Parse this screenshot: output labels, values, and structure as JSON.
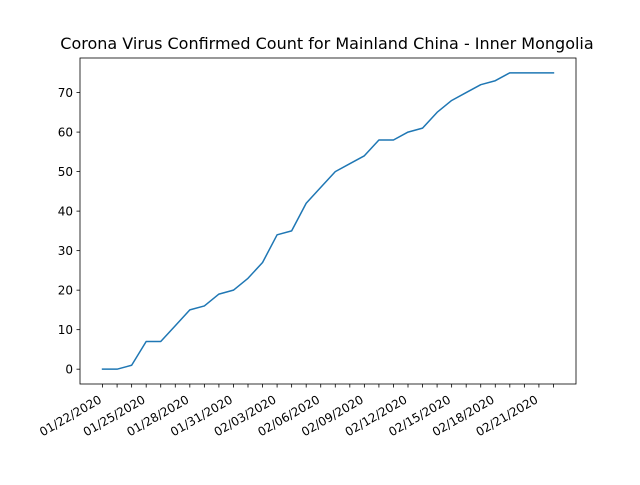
{
  "chart_data": {
    "type": "line",
    "title": "Corona Virus Confirmed Count for Mainland China - Inner Mongolia",
    "xlabel": "",
    "ylabel": "",
    "x": [
      "01/22/2020",
      "01/23/2020",
      "01/24/2020",
      "01/25/2020",
      "01/26/2020",
      "01/27/2020",
      "01/28/2020",
      "01/29/2020",
      "01/30/2020",
      "01/31/2020",
      "02/01/2020",
      "02/02/2020",
      "02/03/2020",
      "02/04/2020",
      "02/05/2020",
      "02/06/2020",
      "02/07/2020",
      "02/08/2020",
      "02/09/2020",
      "02/10/2020",
      "02/11/2020",
      "02/12/2020",
      "02/13/2020",
      "02/14/2020",
      "02/15/2020",
      "02/16/2020",
      "02/17/2020",
      "02/18/2020",
      "02/19/2020",
      "02/20/2020",
      "02/21/2020",
      "02/22/2020"
    ],
    "series": [
      {
        "values": [
          0,
          0,
          1,
          7,
          7,
          11,
          15,
          16,
          19,
          20,
          23,
          27,
          34,
          35,
          42,
          46,
          50,
          52,
          54,
          58,
          58,
          60,
          61,
          65,
          68,
          70,
          72,
          73,
          75,
          75,
          75,
          75
        ]
      }
    ],
    "x_tick_labels": [
      "01/22/2020",
      "01/25/2020",
      "01/28/2020",
      "01/31/2020",
      "02/03/2020",
      "02/06/2020",
      "02/09/2020",
      "02/12/2020",
      "02/15/2020",
      "02/18/2020",
      "02/21/2020"
    ],
    "y_ticks": [
      0,
      10,
      20,
      30,
      40,
      50,
      60,
      70
    ],
    "ylim": [
      -3.75,
      78.75
    ],
    "grid": false,
    "legend": "none",
    "line_color": "#1f77b4"
  }
}
